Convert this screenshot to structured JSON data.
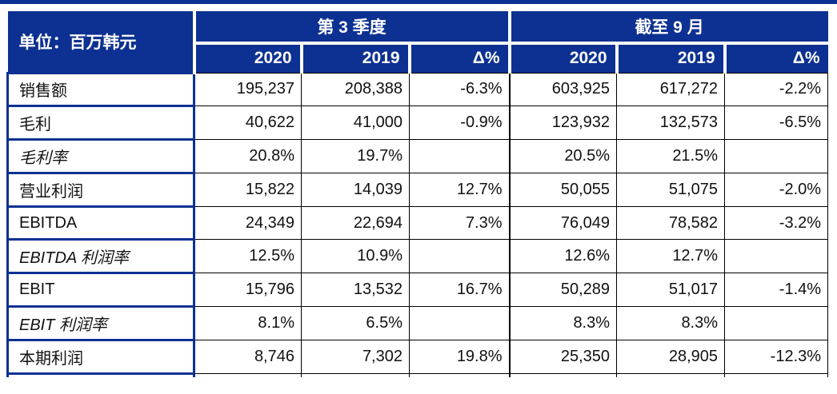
{
  "table": {
    "unit_label": "单位：百万韩元",
    "groups": [
      {
        "label": "第 3 季度",
        "columns": [
          "2020",
          "2019",
          "Δ%"
        ]
      },
      {
        "label": "截至 9 月",
        "columns": [
          "2020",
          "2019",
          "Δ%"
        ]
      }
    ],
    "rows": [
      {
        "label": "销售额",
        "italic": false,
        "values": [
          "195,237",
          "208,388",
          "-6.3%",
          "603,925",
          "617,272",
          "-2.2%"
        ]
      },
      {
        "label": "毛利",
        "italic": false,
        "values": [
          "40,622",
          "41,000",
          "-0.9%",
          "123,932",
          "132,573",
          "-6.5%"
        ]
      },
      {
        "label": "毛利率",
        "italic": true,
        "values": [
          "20.8%",
          "19.7%",
          "",
          "20.5%",
          "21.5%",
          ""
        ]
      },
      {
        "label": "营业利润",
        "italic": false,
        "values": [
          "15,822",
          "14,039",
          "12.7%",
          "50,055",
          "51,075",
          "-2.0%"
        ]
      },
      {
        "label": "EBITDA",
        "italic": false,
        "values": [
          "24,349",
          "22,694",
          "7.3%",
          "76,049",
          "78,582",
          "-3.2%"
        ]
      },
      {
        "label": "EBITDA 利润率",
        "italic": true,
        "values": [
          "12.5%",
          "10.9%",
          "",
          "12.6%",
          "12.7%",
          ""
        ]
      },
      {
        "label": "EBIT",
        "italic": false,
        "values": [
          "15,796",
          "13,532",
          "16.7%",
          "50,289",
          "51,017",
          "-1.4%"
        ]
      },
      {
        "label": "EBIT 利润率",
        "italic": true,
        "values": [
          "8.1%",
          "6.5%",
          "",
          "8.3%",
          "8.3%",
          ""
        ]
      },
      {
        "label": "本期利润",
        "italic": false,
        "values": [
          "8,746",
          "7,302",
          "19.8%",
          "25,350",
          "28,905",
          "-12.3%"
        ]
      }
    ]
  },
  "colors": {
    "header_bg": "#0d3192",
    "header_text": "#ffffff",
    "label_border": "#0d3192",
    "data_border": "#000000",
    "data_text": "#111111",
    "top_bar": "#0d3192"
  }
}
